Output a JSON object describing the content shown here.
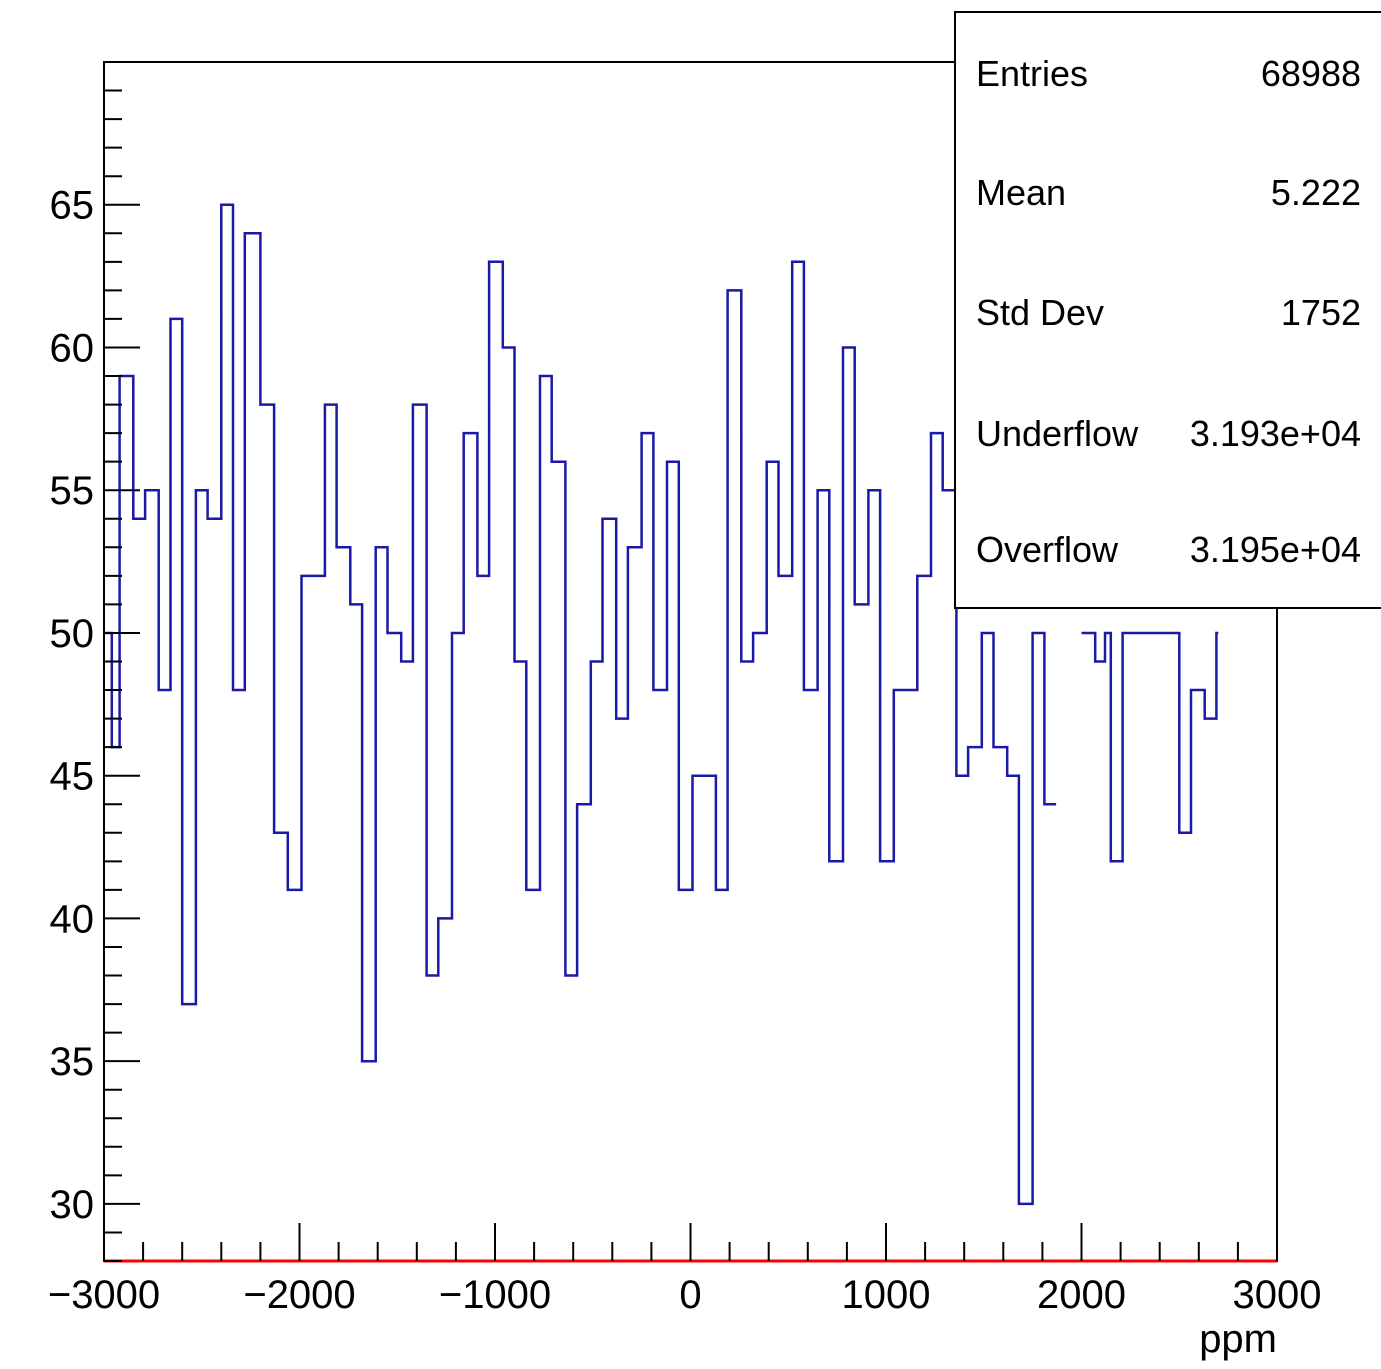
{
  "chart_data": {
    "type": "histogram",
    "title": "",
    "xlabel": "ppm",
    "ylabel": "",
    "xlim": [
      -3000,
      3000
    ],
    "ylim": [
      28,
      70
    ],
    "bin_width": 100,
    "x_ticks": [
      -3000,
      -2000,
      -1000,
      0,
      1000,
      2000,
      3000
    ],
    "x_tick_labels": [
      "−3000",
      "−2000",
      "−1000",
      "0",
      "1000",
      "2000",
      "3000"
    ],
    "y_ticks": [
      30,
      35,
      40,
      45,
      50,
      55,
      60,
      65
    ],
    "y_tick_labels": [
      "30",
      "35",
      "40",
      "45",
      "50",
      "55",
      "60",
      "65"
    ],
    "grid": false,
    "series": [
      {
        "color": "#1a1aa6",
        "bins": [
          [
            -3000,
            50
          ],
          [
            -2960,
            46
          ],
          [
            -2920,
            59
          ],
          [
            -2850,
            54
          ],
          [
            -2790,
            55
          ],
          [
            -2720,
            48
          ],
          [
            -2660,
            61
          ],
          [
            -2600,
            37
          ],
          [
            -2530,
            55
          ],
          [
            -2470,
            54
          ],
          [
            -2400,
            65
          ],
          [
            -2340,
            48
          ],
          [
            -2280,
            64
          ],
          [
            -2200,
            58
          ],
          [
            -2130,
            43
          ],
          [
            -2060,
            41
          ],
          [
            -1990,
            52
          ],
          [
            -1870,
            58
          ],
          [
            -1810,
            53
          ],
          [
            -1740,
            51
          ],
          [
            -1680,
            35
          ],
          [
            -1610,
            53
          ],
          [
            -1550,
            50
          ],
          [
            -1480,
            49
          ],
          [
            -1420,
            58
          ],
          [
            -1350,
            38
          ],
          [
            -1290,
            40
          ],
          [
            -1220,
            50
          ],
          [
            -1160,
            57
          ],
          [
            -1090,
            52
          ],
          [
            -1030,
            63
          ],
          [
            -960,
            60
          ],
          [
            -900,
            49
          ],
          [
            -840,
            41
          ],
          [
            -770,
            59
          ],
          [
            -710,
            56
          ],
          [
            -640,
            38
          ],
          [
            -580,
            44
          ],
          [
            -510,
            49
          ],
          [
            -450,
            54
          ],
          [
            -380,
            47
          ],
          [
            -320,
            53
          ],
          [
            -250,
            57
          ],
          [
            -190,
            48
          ],
          [
            -120,
            56
          ],
          [
            -60,
            41
          ],
          [
            10,
            45
          ],
          [
            130,
            41
          ],
          [
            190,
            62
          ],
          [
            260,
            49
          ],
          [
            320,
            50
          ],
          [
            390,
            56
          ],
          [
            450,
            52
          ],
          [
            520,
            63
          ],
          [
            580,
            48
          ],
          [
            650,
            55
          ],
          [
            710,
            42
          ],
          [
            780,
            60
          ],
          [
            840,
            51
          ],
          [
            910,
            55
          ],
          [
            970,
            42
          ],
          [
            1040,
            48
          ],
          [
            1160,
            52
          ],
          [
            1230,
            57
          ],
          [
            1290,
            55
          ],
          [
            1360,
            45
          ],
          [
            1420,
            46
          ],
          [
            1490,
            50
          ],
          [
            1550,
            46
          ],
          [
            1620,
            45
          ],
          [
            1680,
            30
          ],
          [
            1750,
            50
          ],
          [
            1810,
            44
          ]
        ],
        "bins_right": [
          [
            2000,
            50
          ],
          [
            2070,
            49
          ],
          [
            2120,
            50
          ],
          [
            2150,
            42
          ],
          [
            2210,
            50
          ],
          [
            2270,
            50
          ],
          [
            2360,
            50
          ],
          [
            2440,
            50
          ],
          [
            2500,
            43
          ],
          [
            2560,
            48
          ],
          [
            2630,
            47
          ],
          [
            2690,
            50
          ]
        ]
      }
    ],
    "stats_box": {
      "rows": [
        {
          "label": "Entries",
          "value": "68988"
        },
        {
          "label": "Mean",
          "value": "5.222"
        },
        {
          "label": "Std Dev",
          "value": "1752"
        },
        {
          "label": "Underflow",
          "value": "3.193e+04"
        },
        {
          "label": "Overflow",
          "value": "3.195e+04"
        }
      ]
    },
    "baseline_color": "#ff0000",
    "line_color": "#1a1aa6"
  }
}
